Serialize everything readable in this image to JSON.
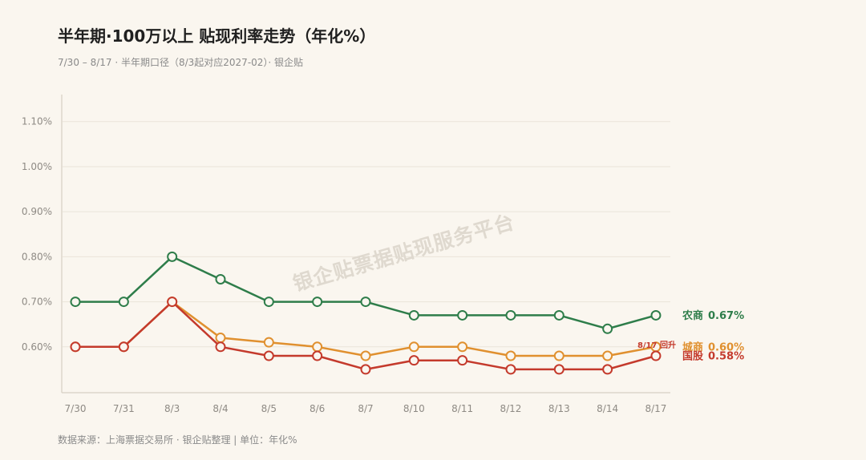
{
  "page": {
    "background": "#FAF6EF"
  },
  "watermark": "银企贴票据贴现服务平台",
  "footer": "数据来源：上海票据交易所 · 银企贴整理  |  单位：年化%",
  "chart_data": {
    "type": "line",
    "title": "半年期·100万以上 贴现利率走势（年化%）",
    "subtitle": "7/30 – 8/17 · 半年期口径（8/3起对应2027-02）· 银企贴",
    "categories": [
      "7/30",
      "7/31",
      "8/3",
      "8/4",
      "8/5",
      "8/6",
      "8/7",
      "8/10",
      "8/11",
      "8/12",
      "8/13",
      "8/14",
      "8/17"
    ],
    "ylim": [
      0.5,
      1.16
    ],
    "yticks": [
      0.6,
      0.7,
      0.8,
      0.9,
      1.0,
      1.1
    ],
    "ytick_labels": [
      "0.60%",
      "0.70%",
      "0.80%",
      "0.90%",
      "1.00%",
      "1.10%"
    ],
    "grid": true,
    "legend": "right",
    "series": [
      {
        "name": "城商",
        "color": "#E0902F",
        "values": [
          0.6,
          0.6,
          0.7,
          0.62,
          0.61,
          0.6,
          0.58,
          0.6,
          0.6,
          0.58,
          0.58,
          0.58,
          0.6
        ],
        "end_label": "0.60%"
      },
      {
        "name": "国股",
        "color": "#C43A2C",
        "values": [
          0.6,
          0.6,
          0.7,
          0.6,
          0.58,
          0.58,
          0.55,
          0.57,
          0.57,
          0.55,
          0.55,
          0.55,
          0.58
        ],
        "end_label": "0.58%"
      },
      {
        "name": "农商",
        "color": "#2E7D4A",
        "values": [
          0.7,
          0.7,
          0.8,
          0.75,
          0.7,
          0.7,
          0.7,
          0.67,
          0.67,
          0.67,
          0.67,
          0.64,
          0.67
        ],
        "end_label": "0.67%"
      }
    ],
    "annotations": [
      {
        "x": "8/17",
        "series": "国股",
        "text": "8/17 回升",
        "color": "#C43A2C"
      }
    ]
  }
}
